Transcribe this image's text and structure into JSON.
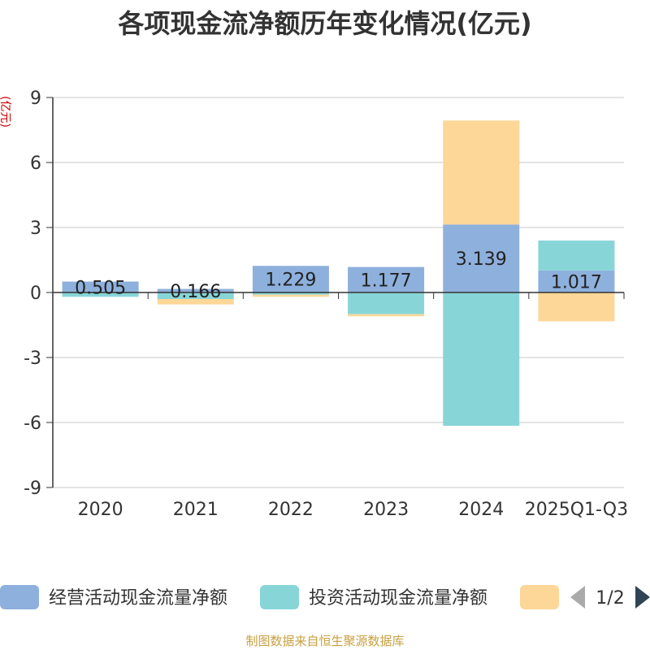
{
  "chart_data": {
    "type": "bar",
    "stacked": true,
    "title": "各项现金流净额历年变化情况(亿元)",
    "ylabel": "(亿元)",
    "ylim": [
      -9,
      9
    ],
    "yticks": [
      9,
      6,
      3,
      0,
      -3,
      -6,
      -9
    ],
    "ytick_labels": [
      "9",
      "6",
      "3",
      "0",
      "-3",
      "-6",
      "-9"
    ],
    "categories": [
      "2020",
      "2021",
      "2022",
      "2023",
      "2024",
      "2025Q1-Q3"
    ],
    "series": [
      {
        "name": "经营活动现金流量净额",
        "color": "#8eb0dc",
        "values": [
          0.505,
          0.166,
          1.229,
          1.177,
          3.139,
          1.017
        ]
      },
      {
        "name": "投资活动现金流量净额",
        "color": "#88d5d8",
        "values": [
          -0.2,
          -0.3,
          -0.1,
          -1.0,
          -6.15,
          1.38
        ]
      },
      {
        "name": "",
        "color": "#fdd797",
        "values": [
          0.0,
          -0.25,
          -0.1,
          -0.1,
          4.8,
          -1.33
        ]
      }
    ],
    "data_labels": [
      "0.505",
      "0.166",
      "1.229",
      "1.177",
      "3.139",
      "1.017"
    ],
    "grid": true,
    "legend_position": "bottom",
    "legend_page": "1/2"
  },
  "source_note": "制图数据来自恒生聚源数据库"
}
